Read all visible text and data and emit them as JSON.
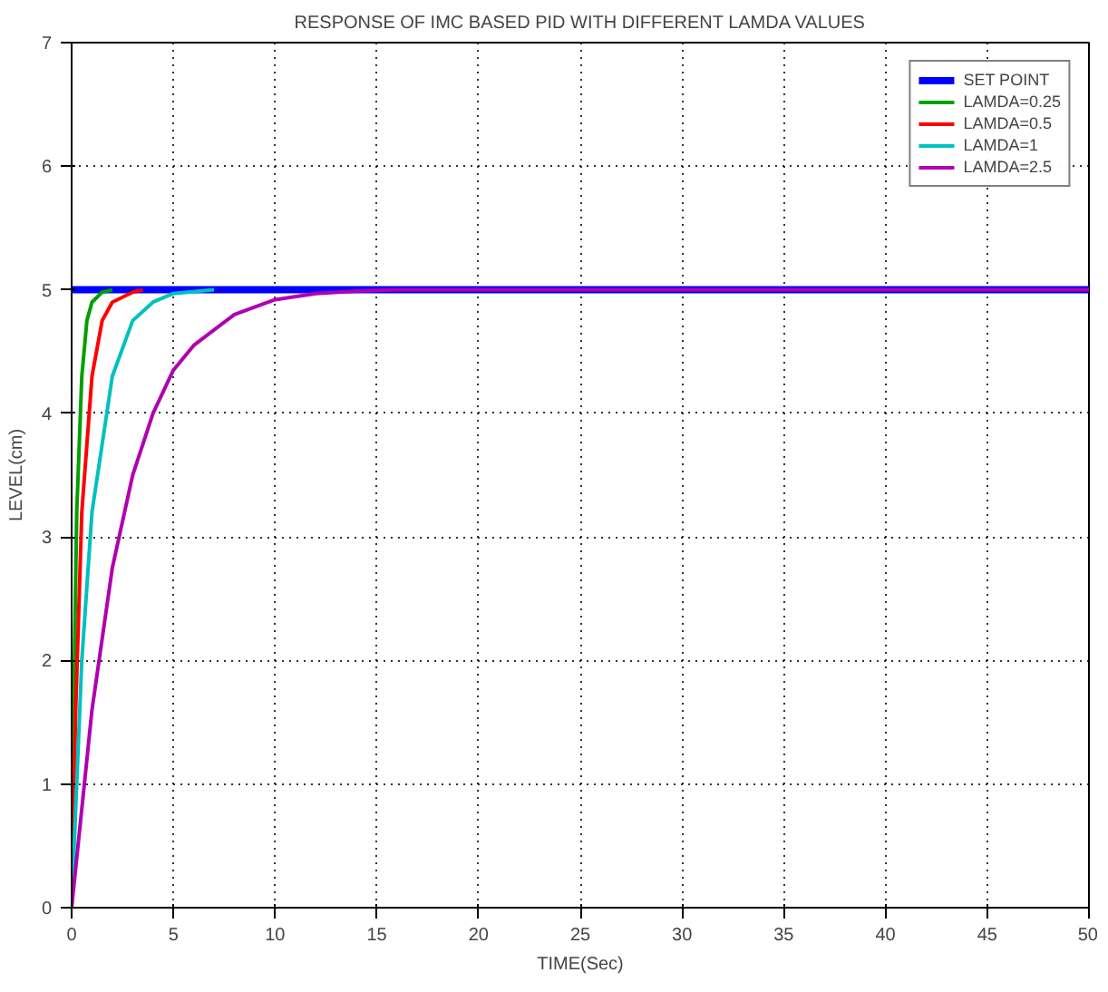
{
  "chart_data": {
    "type": "line",
    "title": "RESPONSE OF IMC BASED PID WITH DIFFERENT LAMDA VALUES",
    "xlabel": "TIME(Sec)",
    "ylabel": "LEVEL(cm)",
    "xlim": [
      0,
      50
    ],
    "ylim": [
      0,
      7
    ],
    "xticks": [
      0,
      5,
      10,
      15,
      20,
      25,
      30,
      35,
      40,
      45,
      50
    ],
    "yticks": [
      0,
      1,
      2,
      3,
      4,
      5,
      6,
      7
    ],
    "grid": true,
    "legend": "top right",
    "marker": "none",
    "line_style": "solid",
    "series": [
      {
        "name": "SET POINT",
        "color": "#0000ff",
        "x": [
          0,
          50
        ],
        "values": [
          5,
          5
        ]
      },
      {
        "name": "LAMDA=0.25",
        "color": "#00a000",
        "x": [
          0,
          0.1,
          0.25,
          0.5,
          0.75,
          1,
          1.5,
          2
        ],
        "values": [
          0,
          1.6,
          3.2,
          4.3,
          4.75,
          4.9,
          4.98,
          5
        ]
      },
      {
        "name": "LAMDA=0.5",
        "color": "#ff0000",
        "x": [
          0,
          0.2,
          0.5,
          1,
          1.5,
          2,
          3,
          3.5
        ],
        "values": [
          0,
          1.6,
          3.2,
          4.3,
          4.75,
          4.9,
          4.98,
          5
        ]
      },
      {
        "name": "LAMDA=1",
        "color": "#00c0c0",
        "x": [
          0,
          0.5,
          1,
          2,
          3,
          4,
          5,
          7
        ],
        "values": [
          0,
          2,
          3.2,
          4.3,
          4.75,
          4.9,
          4.97,
          5
        ]
      },
      {
        "name": "LAMDA=2.5",
        "color": "#b000b0",
        "x": [
          0,
          1,
          2,
          3,
          4,
          5,
          6,
          8,
          10,
          12,
          14,
          16,
          50
        ],
        "values": [
          0,
          1.6,
          2.75,
          3.5,
          4.0,
          4.35,
          4.55,
          4.8,
          4.92,
          4.97,
          4.99,
          5,
          5
        ]
      }
    ]
  }
}
